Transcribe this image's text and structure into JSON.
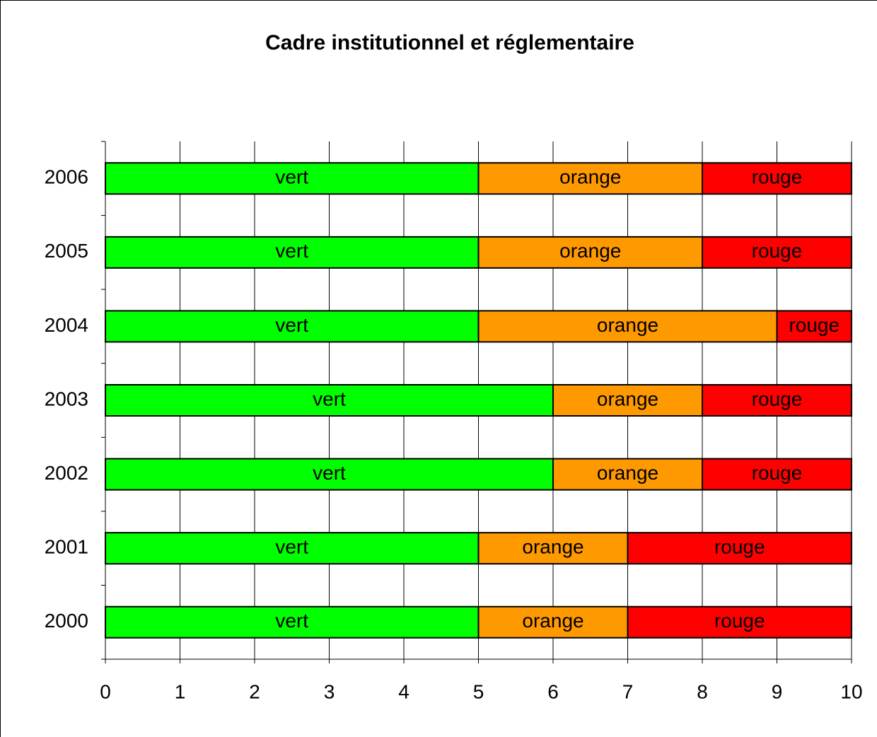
{
  "chart_data": {
    "type": "stacked-bar-horizontal",
    "title": "Cadre institutionnel et réglementaire",
    "categories": [
      "2000",
      "2001",
      "2002",
      "2003",
      "2004",
      "2005",
      "2006"
    ],
    "series": [
      {
        "name": "vert",
        "color": "#00ff00",
        "values": [
          5,
          5,
          6,
          6,
          5,
          5,
          5
        ]
      },
      {
        "name": "orange",
        "color": "#ff9900",
        "values": [
          2,
          2,
          2,
          2,
          4,
          3,
          3
        ]
      },
      {
        "name": "rouge",
        "color": "#ff0000",
        "values": [
          3,
          3,
          2,
          2,
          1,
          2,
          2
        ]
      }
    ],
    "xlim": [
      0,
      10
    ],
    "xticks": [
      0,
      1,
      2,
      3,
      4,
      5,
      6,
      7,
      8,
      9,
      10
    ],
    "grid": true
  }
}
